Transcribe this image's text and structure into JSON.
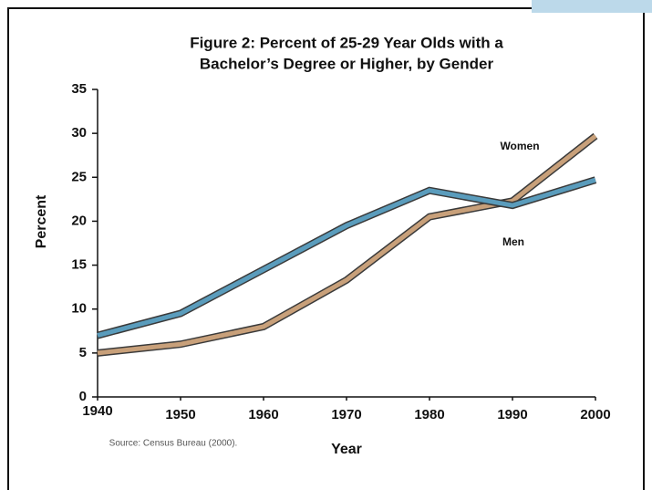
{
  "chart_data": {
    "type": "line",
    "title": [
      "Figure 2: Percent of 25-29 Year Olds with a",
      "Bachelor’s Degree or Higher, by Gender"
    ],
    "x_label": "Year",
    "y_label": "Percent",
    "source": "Source: Census Bureau (2000).",
    "x": [
      1940,
      1950,
      1960,
      1970,
      1980,
      1990,
      2000
    ],
    "series": [
      {
        "name": "Women",
        "color": "#c8a07a",
        "values": [
          5,
          6,
          8,
          13.3,
          20.5,
          22.3,
          29.7
        ]
      },
      {
        "name": "Men",
        "color": "#5a9cbc",
        "values": [
          7,
          9.5,
          14.5,
          19.5,
          23.5,
          21.8,
          24.7
        ]
      }
    ],
    "xlim": [
      1940,
      2000
    ],
    "xticks": [
      1940,
      1950,
      1960,
      1970,
      1980,
      1990,
      2000
    ],
    "ylim": [
      0,
      35
    ],
    "yticks": [
      0,
      5,
      10,
      15,
      20,
      25,
      30,
      35
    ]
  }
}
